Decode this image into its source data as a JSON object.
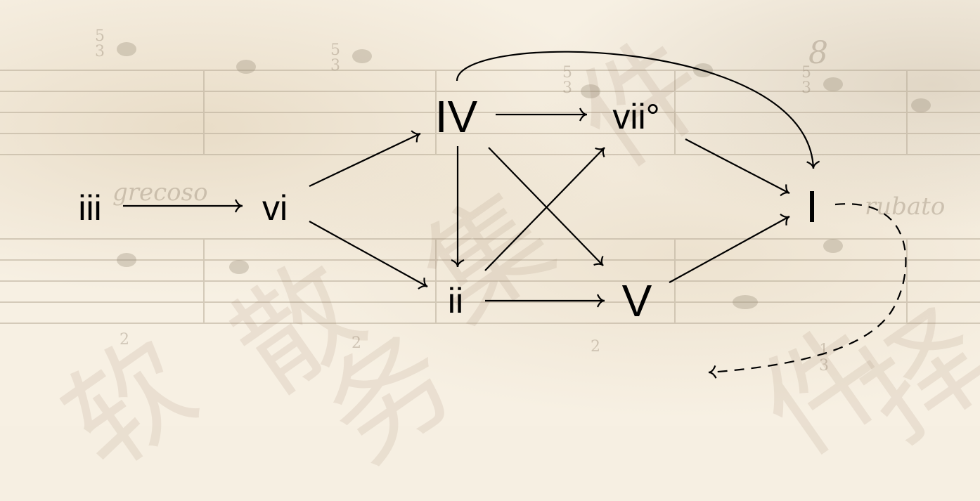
{
  "nodes": [
    {
      "id": "iii",
      "label": "iii"
    },
    {
      "id": "vi",
      "label": "vi"
    },
    {
      "id": "IV",
      "label": "IV"
    },
    {
      "id": "ii",
      "label": "ii"
    },
    {
      "id": "vii",
      "label": "vii°"
    },
    {
      "id": "V",
      "label": "V"
    },
    {
      "id": "I",
      "label": "I"
    }
  ],
  "edges": [
    {
      "from": "iii",
      "to": "vi",
      "style": "solid"
    },
    {
      "from": "vi",
      "to": "IV",
      "style": "solid"
    },
    {
      "from": "vi",
      "to": "ii",
      "style": "solid"
    },
    {
      "from": "IV",
      "to": "vii",
      "style": "solid"
    },
    {
      "from": "IV",
      "to": "ii",
      "style": "solid"
    },
    {
      "from": "IV",
      "to": "V",
      "style": "solid"
    },
    {
      "from": "IV",
      "to": "I",
      "style": "solid"
    },
    {
      "from": "ii",
      "to": "vii",
      "style": "solid"
    },
    {
      "from": "ii",
      "to": "V",
      "style": "solid"
    },
    {
      "from": "vii",
      "to": "I",
      "style": "solid"
    },
    {
      "from": "V",
      "to": "I",
      "style": "solid"
    },
    {
      "from": "I",
      "to": "start",
      "style": "dashed"
    }
  ],
  "background": {
    "score_annotations": [
      "grecoso",
      "rubato"
    ],
    "finger_numbers": [
      "5",
      "3",
      "5",
      "3",
      "5",
      "3",
      "5",
      "3",
      "2",
      "2",
      "2",
      "1",
      "3"
    ],
    "octave_mark": "8",
    "watermark_chars": [
      "软",
      "件",
      "集",
      "散",
      "务",
      "件",
      "择"
    ]
  },
  "colors": {
    "ink": "#000000",
    "paper": "#f7f0e3",
    "faded": "#8a7a66"
  }
}
